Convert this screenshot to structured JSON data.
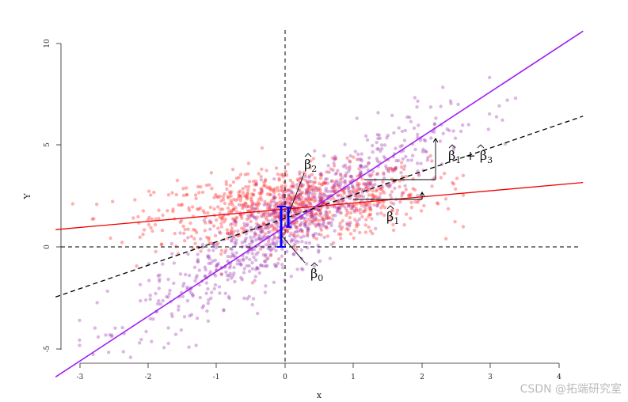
{
  "chart_data": {
    "type": "scatter",
    "title": "",
    "xlabel": "x",
    "ylabel": "Y",
    "xlim": [
      -3.3,
      4.15
    ],
    "ylim": [
      -5.7,
      10.5
    ],
    "xticks": [
      -3,
      -2,
      -1,
      0,
      1,
      2,
      3,
      4
    ],
    "yticks": [
      -5,
      0,
      5,
      10
    ],
    "xtick_labels": [
      "-3",
      "-2",
      "-1",
      "0",
      "1",
      "2",
      "3",
      "4"
    ],
    "ytick_labels": [
      "-5",
      "0",
      "5",
      "10"
    ],
    "grid": false,
    "reference_lines": [
      {
        "orientation": "vertical",
        "value": 0,
        "style": "dashed",
        "color": "#000000"
      },
      {
        "orientation": "horizontal",
        "value": 0,
        "style": "dashed",
        "color": "#000000"
      }
    ],
    "series": [
      {
        "type": "points",
        "color": "#ff2020",
        "count": 900,
        "x_range": [
          -3.1,
          2.6
        ],
        "y_center": 2,
        "y_spread": 0.9,
        "alpha": 0.35
      },
      {
        "type": "points",
        "color": "#9b30b0",
        "count": 900,
        "x_range": [
          -3.0,
          3.4
        ],
        "slope": 2.0,
        "intercept": 1,
        "y_spread": 1.1,
        "alpha": 0.35
      },
      {
        "type": "line",
        "color": "#ee0000",
        "style": "solid",
        "intercept": 1.85,
        "slope": 0.3
      },
      {
        "type": "line",
        "color": "#a020f0",
        "style": "solid",
        "intercept": 1.0,
        "slope": 2.2
      },
      {
        "type": "line",
        "color": "#000000",
        "style": "dashed",
        "intercept": 1.4,
        "slope": 1.15
      }
    ],
    "annotations": {
      "beta0": {
        "base": "β",
        "sub": "0"
      },
      "beta1": {
        "base": "β",
        "sub": "1"
      },
      "beta2": {
        "base": "β",
        "sub": "2"
      },
      "beta13": {
        "base1": "β",
        "sub1": "1",
        "plus": " + ",
        "base2": "β",
        "sub2": "3"
      }
    },
    "colors": {
      "red": "#ee0000",
      "purple": "#a020f0",
      "blue": "#0000ff",
      "black": "#000000"
    }
  },
  "watermark": "CSDN @拓端研究室"
}
